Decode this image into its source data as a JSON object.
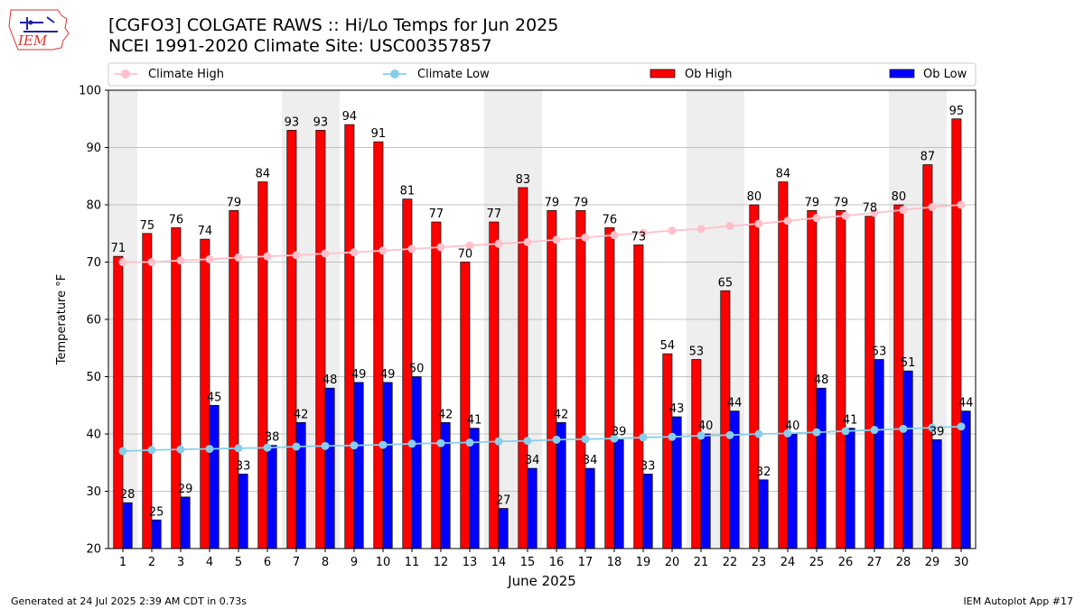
{
  "header": {
    "logo_text": "IEM",
    "title_line1": "[CGFO3] COLGATE RAWS :: Hi/Lo Temps for Jun 2025",
    "title_line2": "NCEI 1991-2020 Climate Site: USC00357857"
  },
  "footer": {
    "generated": "Generated at 24 Jul 2025 2:39 AM CDT in 0.73s",
    "app": "IEM Autoplot App #17"
  },
  "colors": {
    "ob_high": "#ff0000",
    "ob_low": "#0000ff",
    "climate_high": "#ffc0cb",
    "climate_low": "#87ceeb",
    "weekend_shade": "#eeeeee",
    "grid": "#b0b0b0"
  },
  "chart_data": {
    "type": "bar",
    "xlabel": "June 2025",
    "ylabel": "Temperature °F",
    "ylim": [
      20,
      100
    ],
    "yticks": [
      20,
      30,
      40,
      50,
      60,
      70,
      80,
      90,
      100
    ],
    "grid": "horizontal",
    "legend_position": "top",
    "days": [
      1,
      2,
      3,
      4,
      5,
      6,
      7,
      8,
      9,
      10,
      11,
      12,
      13,
      14,
      15,
      16,
      17,
      18,
      19,
      20,
      21,
      22,
      23,
      24,
      25,
      26,
      27,
      28,
      29,
      30
    ],
    "shaded_day_pairs": [
      [
        1
      ],
      [
        7,
        8
      ],
      [
        14,
        15
      ],
      [
        21,
        22
      ],
      [
        28,
        29
      ]
    ],
    "series": [
      {
        "name": "Climate High",
        "kind": "line",
        "values": [
          70,
          70,
          70.3,
          70.5,
          70.8,
          71,
          71.2,
          71.5,
          71.7,
          72,
          72.3,
          72.6,
          72.9,
          73.2,
          73.5,
          73.9,
          74.3,
          74.7,
          75.1,
          75.5,
          75.8,
          76.3,
          76.7,
          77.2,
          77.7,
          78.1,
          78.6,
          79.1,
          79.6,
          80
        ]
      },
      {
        "name": "Climate Low",
        "kind": "line",
        "values": [
          37,
          37.2,
          37.3,
          37.4,
          37.5,
          37.6,
          37.8,
          37.9,
          38,
          38.1,
          38.3,
          38.4,
          38.5,
          38.7,
          38.8,
          39,
          39.1,
          39.2,
          39.4,
          39.5,
          39.7,
          39.8,
          40,
          40.1,
          40.3,
          40.5,
          40.7,
          40.9,
          41.1,
          41.3
        ]
      },
      {
        "name": "Ob High",
        "kind": "bar",
        "values": [
          71,
          75,
          76,
          74,
          79,
          84,
          93,
          93,
          94,
          91,
          81,
          77,
          70,
          77,
          83,
          79,
          79,
          76,
          73,
          54,
          53,
          65,
          80,
          84,
          79,
          79,
          78,
          80,
          87,
          95
        ]
      },
      {
        "name": "Ob Low",
        "kind": "bar",
        "values": [
          28,
          25,
          29,
          45,
          33,
          38,
          42,
          48,
          49,
          49,
          50,
          42,
          41,
          27,
          34,
          42,
          34,
          39,
          33,
          43,
          40,
          44,
          32,
          40,
          48,
          41,
          53,
          51,
          39,
          44
        ]
      }
    ]
  }
}
